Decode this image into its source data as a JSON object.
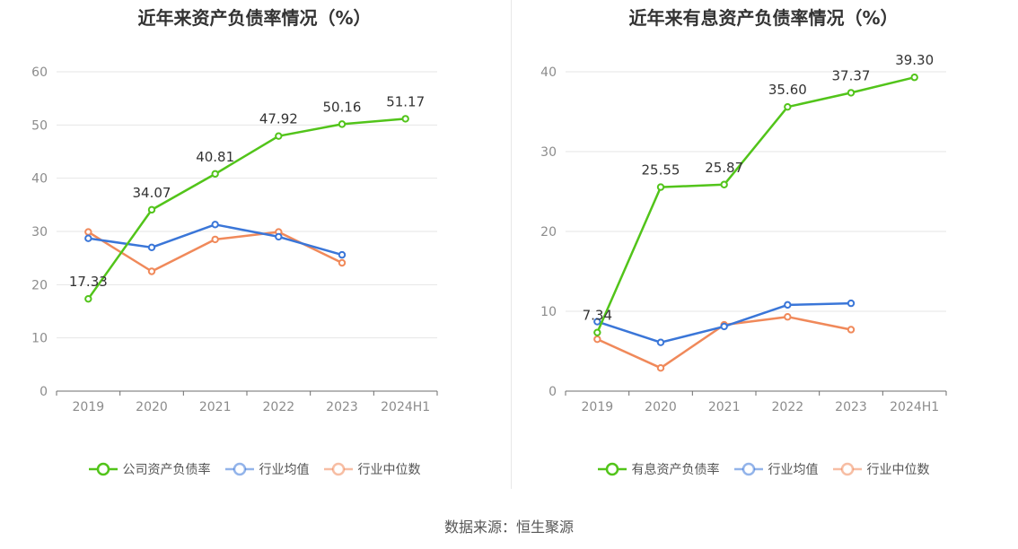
{
  "footer": {
    "source": "数据来源：恒生聚源"
  },
  "chart_data": [
    {
      "type": "line",
      "title": "近年来资产负债率情况（%）",
      "categories": [
        "2019",
        "2020",
        "2021",
        "2022",
        "2023",
        "2024H1"
      ],
      "ylim": [
        0,
        60
      ],
      "yticks": [
        0,
        10,
        20,
        30,
        40,
        50,
        60
      ],
      "grid": true,
      "legend_position": "bottom",
      "series": [
        {
          "name": "公司资产负债率",
          "color": "#52c41a",
          "values": [
            17.33,
            34.07,
            40.81,
            47.92,
            50.16,
            51.17
          ],
          "labels": true
        },
        {
          "name": "行业均值",
          "color": "#3a76d8",
          "values": [
            28.7,
            27.0,
            31.3,
            29.0,
            25.6,
            null
          ],
          "labels": false
        },
        {
          "name": "行业中位数",
          "color": "#f0895a",
          "values": [
            29.9,
            22.5,
            28.5,
            29.9,
            24.1,
            null
          ],
          "labels": false
        }
      ]
    },
    {
      "type": "line",
      "title": "近年来有息资产负债率情况（%）",
      "categories": [
        "2019",
        "2020",
        "2021",
        "2022",
        "2023",
        "2024H1"
      ],
      "ylim": [
        0,
        40
      ],
      "yticks": [
        0,
        10,
        20,
        30,
        40
      ],
      "grid": true,
      "legend_position": "bottom",
      "series": [
        {
          "name": "有息资产负债率",
          "color": "#52c41a",
          "values": [
            7.34,
            25.55,
            25.87,
            35.6,
            37.37,
            39.3
          ],
          "labels": true
        },
        {
          "name": "行业均值",
          "color": "#3a76d8",
          "values": [
            8.7,
            6.1,
            8.1,
            10.8,
            11.0,
            null
          ],
          "labels": false
        },
        {
          "name": "行业中位数",
          "color": "#f0895a",
          "values": [
            6.5,
            2.9,
            8.3,
            9.3,
            7.7,
            null
          ],
          "labels": false
        }
      ]
    }
  ]
}
